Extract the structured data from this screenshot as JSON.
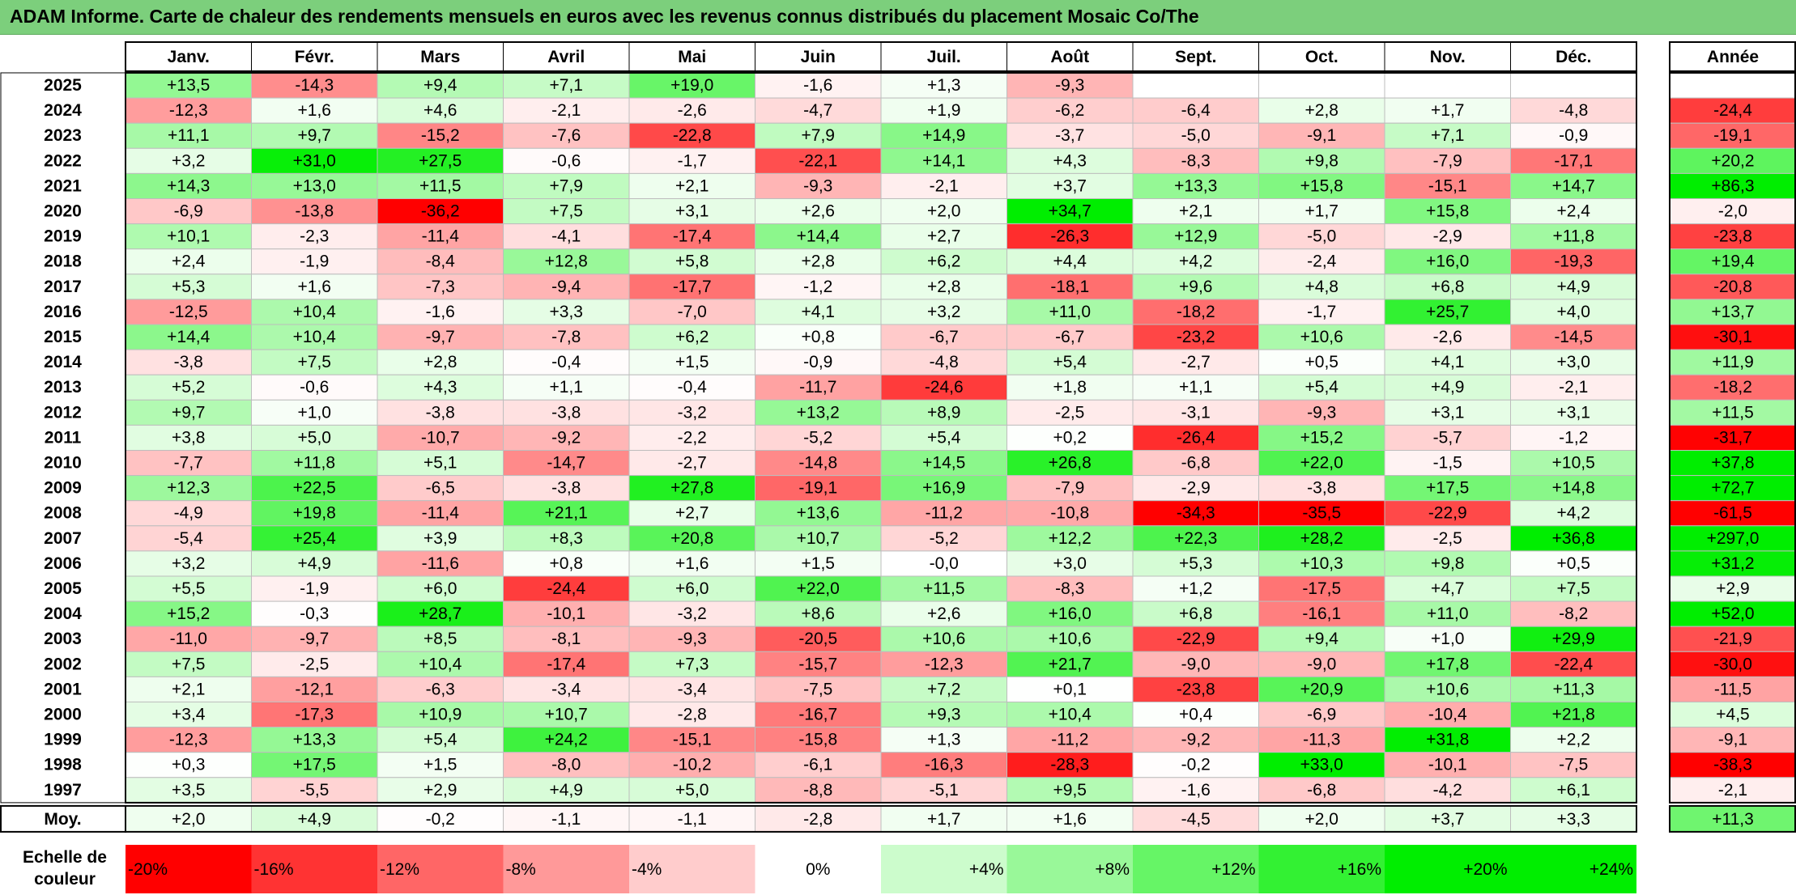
{
  "title": "ADAM Informe. Carte de chaleur des rendements mensuels en euros avec les revenus connus distribués du placement Mosaic Co/The",
  "colors": {
    "title_bg": "#7ccf7c",
    "negative_max": "#ff0000",
    "neutral": "#ffffff",
    "positive_max": "#00ee00"
  },
  "chart_data": {
    "type": "heatmap",
    "months": [
      "Janv.",
      "Févr.",
      "Mars",
      "Avril",
      "Mai",
      "Juin",
      "Juil.",
      "Août",
      "Sept.",
      "Oct.",
      "Nov.",
      "Déc."
    ],
    "year_col_label": "Année",
    "avg_label": "Moy.",
    "scale_label": "Echelle de couleur",
    "years": [
      "2025",
      "2024",
      "2023",
      "2022",
      "2021",
      "2020",
      "2019",
      "2018",
      "2017",
      "2016",
      "2015",
      "2014",
      "2013",
      "2012",
      "2011",
      "2010",
      "2009",
      "2008",
      "2007",
      "2006",
      "2005",
      "2004",
      "2003",
      "2002",
      "2001",
      "2000",
      "1999",
      "1998",
      "1997"
    ],
    "values": [
      [
        "+13,5",
        "-14,3",
        "+9,4",
        "+7,1",
        "+19,0",
        "-1,6",
        "+1,3",
        "-9,3",
        "",
        "",
        "",
        ""
      ],
      [
        "-12,3",
        "+1,6",
        "+4,6",
        "-2,1",
        "-2,6",
        "-4,7",
        "+1,9",
        "-6,2",
        "-6,4",
        "+2,8",
        "+1,7",
        "-4,8"
      ],
      [
        "+11,1",
        "+9,7",
        "-15,2",
        "-7,6",
        "-22,8",
        "+7,9",
        "+14,9",
        "-3,7",
        "-5,0",
        "-9,1",
        "+7,1",
        "-0,9"
      ],
      [
        "+3,2",
        "+31,0",
        "+27,5",
        "-0,6",
        "-1,7",
        "-22,1",
        "+14,1",
        "+4,3",
        "-8,3",
        "+9,8",
        "-7,9",
        "-17,1"
      ],
      [
        "+14,3",
        "+13,0",
        "+11,5",
        "+7,9",
        "+2,1",
        "-9,3",
        "-2,1",
        "+3,7",
        "+13,3",
        "+15,8",
        "-15,1",
        "+14,7"
      ],
      [
        "-6,9",
        "-13,8",
        "-36,2",
        "+7,5",
        "+3,1",
        "+2,6",
        "+2,0",
        "+34,7",
        "+2,1",
        "+1,7",
        "+15,8",
        "+2,4"
      ],
      [
        "+10,1",
        "-2,3",
        "-11,4",
        "-4,1",
        "-17,4",
        "+14,4",
        "+2,7",
        "-26,3",
        "+12,9",
        "-5,0",
        "-2,9",
        "+11,8"
      ],
      [
        "+2,4",
        "-1,9",
        "-8,4",
        "+12,8",
        "+5,8",
        "+2,8",
        "+6,2",
        "+4,4",
        "+4,2",
        "-2,4",
        "+16,0",
        "-19,3"
      ],
      [
        "+5,3",
        "+1,6",
        "-7,3",
        "-9,4",
        "-17,7",
        "-1,2",
        "+2,8",
        "-18,1",
        "+9,6",
        "+4,8",
        "+6,8",
        "+4,9"
      ],
      [
        "-12,5",
        "+10,4",
        "-1,6",
        "+3,3",
        "-7,0",
        "+4,1",
        "+3,2",
        "+11,0",
        "-18,2",
        "-1,7",
        "+25,7",
        "+4,0"
      ],
      [
        "+14,4",
        "+10,4",
        "-9,7",
        "-7,8",
        "+6,2",
        "+0,8",
        "-6,7",
        "-6,7",
        "-23,2",
        "+10,6",
        "-2,6",
        "-14,5"
      ],
      [
        "-3,8",
        "+7,5",
        "+2,8",
        "-0,4",
        "+1,5",
        "-0,9",
        "-4,8",
        "+5,4",
        "-2,7",
        "+0,5",
        "+4,1",
        "+3,0"
      ],
      [
        "+5,2",
        "-0,6",
        "+4,3",
        "+1,1",
        "-0,4",
        "-11,7",
        "-24,6",
        "+1,8",
        "+1,1",
        "+5,4",
        "+4,9",
        "-2,1"
      ],
      [
        "+9,7",
        "+1,0",
        "-3,8",
        "-3,8",
        "-3,2",
        "+13,2",
        "+8,9",
        "-2,5",
        "-3,1",
        "-9,3",
        "+3,1",
        "+3,1"
      ],
      [
        "+3,8",
        "+5,0",
        "-10,7",
        "-9,2",
        "-2,2",
        "-5,2",
        "+5,4",
        "+0,2",
        "-26,4",
        "+15,2",
        "-5,7",
        "-1,2"
      ],
      [
        "-7,7",
        "+11,8",
        "+5,1",
        "-14,7",
        "-2,7",
        "-14,8",
        "+14,5",
        "+26,8",
        "-6,8",
        "+22,0",
        "-1,5",
        "+10,5"
      ],
      [
        "+12,3",
        "+22,5",
        "-6,5",
        "-3,8",
        "+27,8",
        "-19,1",
        "+16,9",
        "-7,9",
        "-2,9",
        "-3,8",
        "+17,5",
        "+14,8"
      ],
      [
        "-4,9",
        "+19,8",
        "-11,4",
        "+21,1",
        "+2,7",
        "+13,6",
        "-11,2",
        "-10,8",
        "-34,3",
        "-35,5",
        "-22,9",
        "+4,2"
      ],
      [
        "-5,4",
        "+25,4",
        "+3,9",
        "+8,3",
        "+20,8",
        "+10,7",
        "-5,2",
        "+12,2",
        "+22,3",
        "+28,2",
        "-2,5",
        "+36,8"
      ],
      [
        "+3,2",
        "+4,9",
        "-11,6",
        "+0,8",
        "+1,6",
        "+1,5",
        "-0,0",
        "+3,0",
        "+5,3",
        "+10,3",
        "+9,8",
        "+0,5"
      ],
      [
        "+5,5",
        "-1,9",
        "+6,0",
        "-24,4",
        "+6,0",
        "+22,0",
        "+11,5",
        "-8,3",
        "+1,2",
        "-17,5",
        "+4,7",
        "+7,5"
      ],
      [
        "+15,2",
        "-0,3",
        "+28,7",
        "-10,1",
        "-3,2",
        "+8,6",
        "+2,6",
        "+16,0",
        "+6,8",
        "-16,1",
        "+11,0",
        "-8,2"
      ],
      [
        "-11,0",
        "-9,7",
        "+8,5",
        "-8,1",
        "-9,3",
        "-20,5",
        "+10,6",
        "+10,6",
        "-22,9",
        "+9,4",
        "+1,0",
        "+29,9"
      ],
      [
        "+7,5",
        "-2,5",
        "+10,4",
        "-17,4",
        "+7,3",
        "-15,7",
        "-12,3",
        "+21,7",
        "-9,0",
        "-9,0",
        "+17,8",
        "-22,4"
      ],
      [
        "+2,1",
        "-12,1",
        "-6,3",
        "-3,4",
        "-3,4",
        "-7,5",
        "+7,2",
        "+0,1",
        "-23,8",
        "+20,9",
        "+10,6",
        "+11,3"
      ],
      [
        "+3,4",
        "-17,3",
        "+10,9",
        "+10,7",
        "-2,8",
        "-16,7",
        "+9,3",
        "+10,4",
        "+0,4",
        "-6,9",
        "-10,4",
        "+21,8"
      ],
      [
        "-12,3",
        "+13,3",
        "+5,4",
        "+24,2",
        "-15,1",
        "-15,8",
        "+1,3",
        "-11,2",
        "-9,2",
        "-11,3",
        "+31,8",
        "+2,2"
      ],
      [
        "+0,3",
        "+17,5",
        "+1,5",
        "-8,0",
        "-10,2",
        "-6,1",
        "-16,3",
        "-28,3",
        "-0,2",
        "+33,0",
        "-10,1",
        "-7,5"
      ],
      [
        "+3,5",
        "-5,5",
        "+2,9",
        "+4,9",
        "+5,0",
        "-8,8",
        "-5,1",
        "+9,5",
        "-1,6",
        "-6,8",
        "-4,2",
        "+6,1"
      ]
    ],
    "annual": [
      "",
      "-24,4",
      "-19,1",
      "+20,2",
      "+86,3",
      "-2,0",
      "-23,8",
      "+19,4",
      "-20,8",
      "+13,7",
      "-30,1",
      "+11,9",
      "-18,2",
      "+11,5",
      "-31,7",
      "+37,8",
      "+72,7",
      "-61,5",
      "+297,0",
      "+31,2",
      "+2,9",
      "+52,0",
      "-21,9",
      "-30,0",
      "-11,5",
      "+4,5",
      "-9,1",
      "-38,3",
      "-2,1"
    ],
    "averages": [
      "+2,0",
      "+4,9",
      "-0,2",
      "-1,1",
      "-1,1",
      "-2,8",
      "+1,7",
      "+1,6",
      "-4,5",
      "+2,0",
      "+3,7",
      "+3,3"
    ],
    "annual_average": "+11,3",
    "scale": [
      "-20%",
      "-16%",
      "-12%",
      "-8%",
      "-4%",
      "0%",
      "+4%",
      "+8%",
      "+12%",
      "+16%",
      "+20%",
      "+24%"
    ],
    "value_unit": "%"
  }
}
